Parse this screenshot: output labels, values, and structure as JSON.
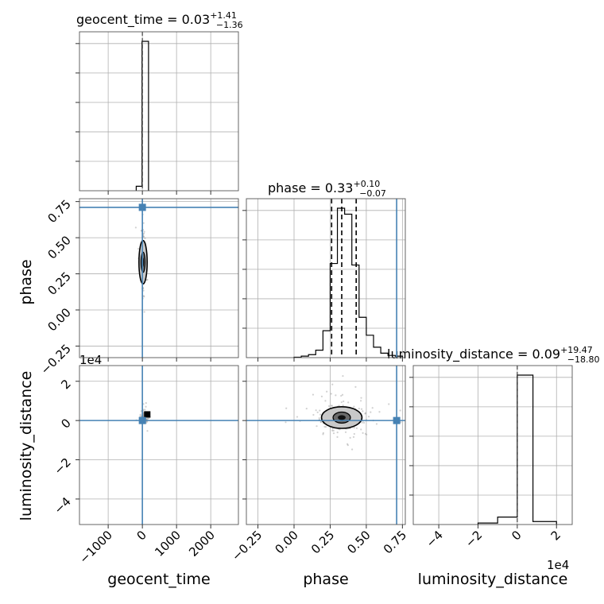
{
  "chart_data": {
    "type": "corner",
    "parameters": [
      "geocent_time",
      "phase",
      "luminosity_distance"
    ],
    "injection_color": "#4682b4",
    "quantile_color": "#000000",
    "truths": {
      "geocent_time": 0,
      "phase": 0.71,
      "luminosity_distance": 0
    },
    "titles": [
      {
        "param": "geocent_time",
        "prefix": "geocent_time = 0.03",
        "upper": "+1.41",
        "lower": "−1.36"
      },
      {
        "param": "phase",
        "prefix": "phase = 0.33",
        "upper": "+0.10",
        "lower": "−0.07"
      },
      {
        "param": "luminosity_distance",
        "prefix": "luminosity_distance = 0.09",
        "upper": "+19.47",
        "lower": "−18.80"
      }
    ],
    "axes": {
      "geocent_time": {
        "label": "geocent_time",
        "range": [
          -1840,
          2810
        ],
        "ticks": [
          -1000,
          0,
          1000,
          2000
        ],
        "tick_labels": [
          "−1000",
          "0",
          "1000",
          "2000"
        ]
      },
      "phase": {
        "label": "phase",
        "range": [
          -0.33,
          0.77
        ],
        "ticks": [
          -0.25,
          0.0,
          0.25,
          0.5,
          0.75
        ],
        "tick_labels": [
          "−0.25",
          "0.00",
          "0.25",
          "0.50",
          "0.75"
        ],
        "quantiles": [
          0.26,
          0.33,
          0.43
        ]
      },
      "luminosity_distance": {
        "label": "luminosity_distance",
        "range": [
          -5.3,
          2.8
        ],
        "ticks": [
          -4,
          -2,
          0,
          2
        ],
        "tick_labels": [
          "−4",
          "−2",
          "0",
          "2"
        ],
        "offset_text": "1e4"
      }
    },
    "histograms": {
      "geocent_time": {
        "edges": [
          -180,
          -10,
          180
        ],
        "counts": [
          0.03,
          1.0
        ]
      },
      "phase": {
        "edges": [
          0.0,
          0.05,
          0.1,
          0.15,
          0.2,
          0.25,
          0.3,
          0.35,
          0.4,
          0.45,
          0.5,
          0.55,
          0.6,
          0.65,
          0.7,
          0.75
        ],
        "counts": [
          0.003,
          0.01,
          0.02,
          0.05,
          0.18,
          0.63,
          1.0,
          0.96,
          0.62,
          0.27,
          0.15,
          0.07,
          0.03,
          0.015,
          0.01
        ]
      },
      "luminosity_distance": {
        "edges": [
          -2.0,
          -1.0,
          0.0,
          0.8,
          2.0
        ],
        "counts": [
          0.01,
          0.05,
          1.0,
          0.02
        ]
      }
    },
    "scatter": {
      "phase_vs_geocent_time": {
        "center": [
          20,
          0.33
        ],
        "spread": [
          25,
          0.075
        ],
        "count": 260,
        "contours": [
          {
            "level": "inner",
            "half_width": [
              60,
              0.07
            ]
          },
          {
            "level": "outer",
            "half_width": [
              120,
              0.15
            ]
          }
        ]
      },
      "luminosity_distance_vs_geocent_time": {
        "center": [
          50,
          0.15
        ],
        "spread": [
          40,
          0.15
        ],
        "count": 120
      },
      "luminosity_distance_vs_phase": {
        "center": [
          0.33,
          0.15
        ],
        "spread": [
          0.08,
          0.35
        ],
        "count": 260,
        "contours": [
          {
            "level": "inner",
            "half_width": [
              0.06,
              0.28
            ]
          },
          {
            "level": "outer",
            "half_width": [
              0.14,
              0.55
            ]
          }
        ]
      }
    }
  }
}
